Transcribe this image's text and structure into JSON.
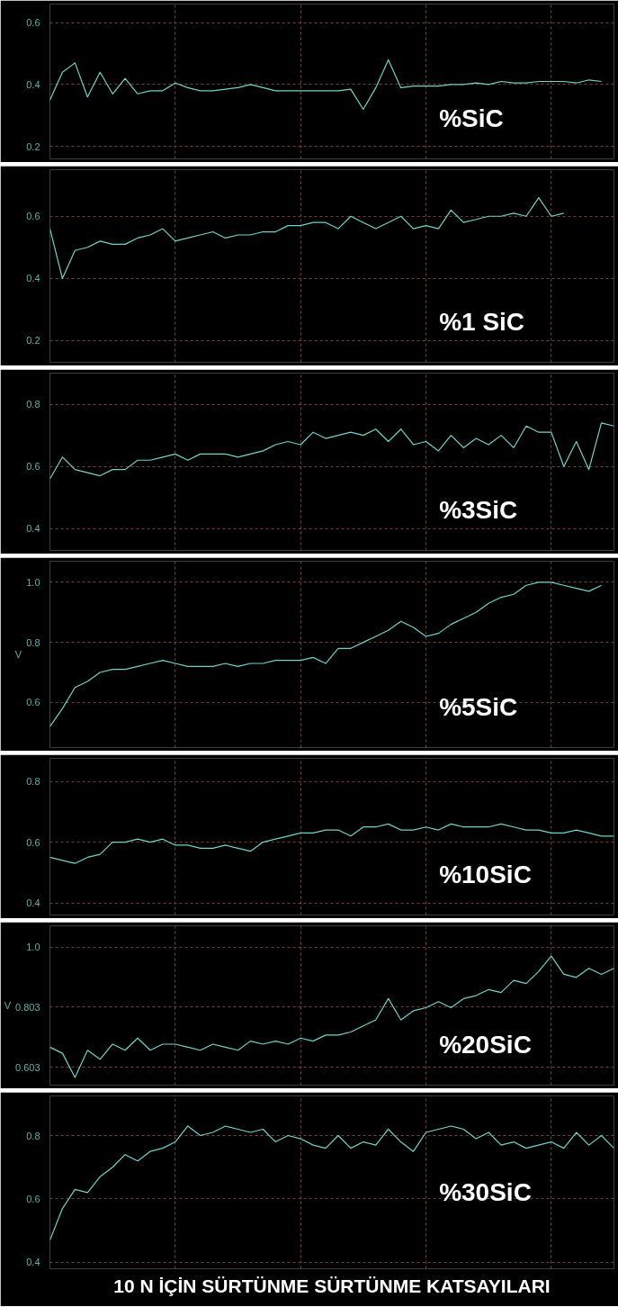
{
  "chart_data": [
    {
      "type": "line",
      "annotations": [
        "%SiC"
      ],
      "ylim": [
        0.16,
        0.66
      ],
      "yticks": [
        0.2,
        0.4,
        0.6
      ],
      "grid": true,
      "tick_labels": "y",
      "categories": [
        null,
        null,
        null,
        null,
        null,
        null,
        null,
        null,
        null,
        null,
        null,
        null,
        null,
        null,
        null,
        null,
        null,
        null,
        null,
        null,
        null,
        null,
        null,
        null,
        null,
        null,
        null,
        null,
        null,
        null,
        null,
        null,
        null,
        null,
        null,
        null,
        null,
        null,
        null,
        null,
        null,
        null,
        null,
        null,
        null,
        null
      ],
      "series": [
        {
          "color": "#6fd3c8",
          "values": [
            0.35,
            0.44,
            0.47,
            0.36,
            0.44,
            0.37,
            0.42,
            0.37,
            0.38,
            0.38,
            0.405,
            0.39,
            0.38,
            0.38,
            0.385,
            0.39,
            0.4,
            0.39,
            0.38,
            0.38,
            0.38,
            0.38,
            0.38,
            0.38,
            0.385,
            0.32,
            0.39,
            0.48,
            0.39,
            0.395,
            0.395,
            0.395,
            0.4,
            0.4,
            0.405,
            0.4,
            0.41,
            0.405,
            0.405,
            0.41,
            0.41,
            0.41,
            0.405,
            0.415,
            0.41,
            null
          ]
        }
      ]
    },
    {
      "type": "line",
      "annotations": [
        "%1 SiC"
      ],
      "ylim": [
        0.13,
        0.75
      ],
      "yticks": [
        0.2,
        0.4,
        0.6
      ],
      "grid": true,
      "tick_labels": "y",
      "categories": [
        null,
        null,
        null,
        null,
        null,
        null,
        null,
        null,
        null,
        null,
        null,
        null,
        null,
        null,
        null,
        null,
        null,
        null,
        null,
        null,
        null,
        null,
        null,
        null,
        null,
        null,
        null,
        null,
        null,
        null,
        null,
        null,
        null,
        null,
        null,
        null,
        null,
        null,
        null,
        null,
        null,
        null,
        null,
        null,
        null,
        null
      ],
      "series": [
        {
          "color": "#6fd3c8",
          "values": [
            0.56,
            0.4,
            0.49,
            0.5,
            0.52,
            0.51,
            0.51,
            0.53,
            0.54,
            0.56,
            0.52,
            0.53,
            0.54,
            0.55,
            0.53,
            0.54,
            0.54,
            0.55,
            0.55,
            0.57,
            0.57,
            0.58,
            0.58,
            0.56,
            0.6,
            0.58,
            0.56,
            0.58,
            0.6,
            0.56,
            0.57,
            0.56,
            0.62,
            0.58,
            0.59,
            0.6,
            0.6,
            0.61,
            0.6,
            0.66,
            0.6,
            0.61,
            null,
            null,
            null,
            null
          ]
        }
      ]
    },
    {
      "type": "line",
      "annotations": [
        "%3SiC"
      ],
      "ylim": [
        0.33,
        0.9
      ],
      "yticks": [
        0.4,
        0.6,
        0.8
      ],
      "grid": true,
      "tick_labels": "y",
      "categories": [
        null,
        null,
        null,
        null,
        null,
        null,
        null,
        null,
        null,
        null,
        null,
        null,
        null,
        null,
        null,
        null,
        null,
        null,
        null,
        null,
        null,
        null,
        null,
        null,
        null,
        null,
        null,
        null,
        null,
        null,
        null,
        null,
        null,
        null,
        null,
        null,
        null,
        null,
        null,
        null,
        null,
        null,
        null,
        null,
        null,
        null
      ],
      "series": [
        {
          "color": "#6fd3c8",
          "values": [
            0.56,
            0.63,
            0.59,
            0.58,
            0.57,
            0.59,
            0.59,
            0.62,
            0.62,
            0.63,
            0.64,
            0.62,
            0.64,
            0.64,
            0.64,
            0.63,
            0.64,
            0.65,
            0.67,
            0.68,
            0.67,
            0.71,
            0.69,
            0.7,
            0.71,
            0.7,
            0.72,
            0.68,
            0.72,
            0.67,
            0.68,
            0.65,
            0.7,
            0.66,
            0.69,
            0.67,
            0.7,
            0.66,
            0.73,
            0.71,
            0.71,
            0.6,
            0.68,
            0.59,
            0.74,
            0.73
          ]
        }
      ]
    },
    {
      "type": "line",
      "annotations": [
        "%5SiC"
      ],
      "ylabel": "V",
      "ylim": [
        0.45,
        1.07
      ],
      "yticks": [
        0.6,
        0.8,
        {
          "value": 1,
          "label": "1.0"
        }
      ],
      "grid": true,
      "tick_labels": "y",
      "categories": [
        null,
        null,
        null,
        null,
        null,
        null,
        null,
        null,
        null,
        null,
        null,
        null,
        null,
        null,
        null,
        null,
        null,
        null,
        null,
        null,
        null,
        null,
        null,
        null,
        null,
        null,
        null,
        null,
        null,
        null,
        null,
        null,
        null,
        null,
        null,
        null,
        null,
        null,
        null,
        null,
        null,
        null,
        null,
        null,
        null,
        null
      ],
      "series": [
        {
          "color": "#6fd3c8",
          "values": [
            0.52,
            0.58,
            0.65,
            0.67,
            0.7,
            0.71,
            0.71,
            0.72,
            0.73,
            0.74,
            0.73,
            0.72,
            0.72,
            0.72,
            0.73,
            0.72,
            0.73,
            0.73,
            0.74,
            0.74,
            0.74,
            0.75,
            0.73,
            0.78,
            0.78,
            0.8,
            0.82,
            0.84,
            0.87,
            0.85,
            0.82,
            0.83,
            0.86,
            0.88,
            0.9,
            0.93,
            0.95,
            0.96,
            0.99,
            1.0,
            1.0,
            0.99,
            0.98,
            0.97,
            0.99,
            null
          ]
        }
      ]
    },
    {
      "type": "line",
      "annotations": [
        "%10SiC"
      ],
      "ylim": [
        0.36,
        0.876
      ],
      "yticks": [
        0.4,
        0.6,
        0.8
      ],
      "grid": true,
      "tick_labels": "y",
      "categories": [
        null,
        null,
        null,
        null,
        null,
        null,
        null,
        null,
        null,
        null,
        null,
        null,
        null,
        null,
        null,
        null,
        null,
        null,
        null,
        null,
        null,
        null,
        null,
        null,
        null,
        null,
        null,
        null,
        null,
        null,
        null,
        null,
        null,
        null,
        null,
        null,
        null,
        null,
        null,
        null,
        null,
        null,
        null,
        null,
        null,
        null
      ],
      "series": [
        {
          "color": "#6fd3c8",
          "values": [
            0.55,
            0.54,
            0.53,
            0.55,
            0.56,
            0.6,
            0.6,
            0.61,
            0.6,
            0.61,
            0.59,
            0.59,
            0.58,
            0.58,
            0.59,
            0.58,
            0.57,
            0.6,
            0.61,
            0.62,
            0.63,
            0.63,
            0.64,
            0.64,
            0.62,
            0.65,
            0.65,
            0.66,
            0.64,
            0.64,
            0.65,
            0.64,
            0.66,
            0.65,
            0.65,
            0.65,
            0.66,
            0.65,
            0.64,
            0.64,
            0.63,
            0.63,
            0.64,
            0.63,
            0.62,
            0.62
          ]
        }
      ]
    },
    {
      "type": "line",
      "annotations": [
        "%20SiC"
      ],
      "ylabel": "V",
      "ylim": [
        0.545,
        1.07
      ],
      "yticks": [
        0.603,
        0.803,
        {
          "value": 1,
          "label": "1.0"
        }
      ],
      "grid": true,
      "tick_labels": "y",
      "categories": [
        null,
        null,
        null,
        null,
        null,
        null,
        null,
        null,
        null,
        null,
        null,
        null,
        null,
        null,
        null,
        null,
        null,
        null,
        null,
        null,
        null,
        null,
        null,
        null,
        null,
        null,
        null,
        null,
        null,
        null,
        null,
        null,
        null,
        null,
        null,
        null,
        null,
        null,
        null,
        null,
        null,
        null,
        null,
        null,
        null,
        null
      ],
      "series": [
        {
          "color": "#6fd3c8",
          "values": [
            0.67,
            0.65,
            0.57,
            0.66,
            0.63,
            0.68,
            0.66,
            0.7,
            0.66,
            0.68,
            0.68,
            0.67,
            0.66,
            0.68,
            0.67,
            0.66,
            0.69,
            0.68,
            0.69,
            0.68,
            0.7,
            0.69,
            0.71,
            0.71,
            0.72,
            0.74,
            0.76,
            0.83,
            0.76,
            0.79,
            0.8,
            0.82,
            0.8,
            0.83,
            0.84,
            0.86,
            0.85,
            0.89,
            0.88,
            0.92,
            0.97,
            0.91,
            0.9,
            0.93,
            0.91,
            0.93
          ]
        }
      ]
    },
    {
      "type": "line",
      "title": "10 N İÇİN SÜRTÜNME SÜRTÜNME KATSAYILARI",
      "annotations": [
        "%30SiC"
      ],
      "ylim": [
        0.38,
        0.925
      ],
      "yticks": [
        0.4,
        0.6,
        0.8
      ],
      "grid": true,
      "tick_labels": "y",
      "categories": [
        null,
        null,
        null,
        null,
        null,
        null,
        null,
        null,
        null,
        null,
        null,
        null,
        null,
        null,
        null,
        null,
        null,
        null,
        null,
        null,
        null,
        null,
        null,
        null,
        null,
        null,
        null,
        null,
        null,
        null,
        null,
        null,
        null,
        null,
        null,
        null,
        null,
        null,
        null,
        null,
        null,
        null,
        null,
        null,
        null,
        null
      ],
      "series": [
        {
          "color": "#6fd3c8",
          "values": [
            0.47,
            0.57,
            0.63,
            0.62,
            0.67,
            0.7,
            0.74,
            0.72,
            0.75,
            0.76,
            0.78,
            0.83,
            0.8,
            0.81,
            0.83,
            0.82,
            0.81,
            0.82,
            0.78,
            0.8,
            0.79,
            0.77,
            0.76,
            0.8,
            0.76,
            0.78,
            0.77,
            0.82,
            0.78,
            0.75,
            0.81,
            0.82,
            0.83,
            0.82,
            0.79,
            0.81,
            0.77,
            0.78,
            0.76,
            0.77,
            0.78,
            0.76,
            0.81,
            0.77,
            0.8,
            0.76
          ]
        }
      ]
    }
  ]
}
